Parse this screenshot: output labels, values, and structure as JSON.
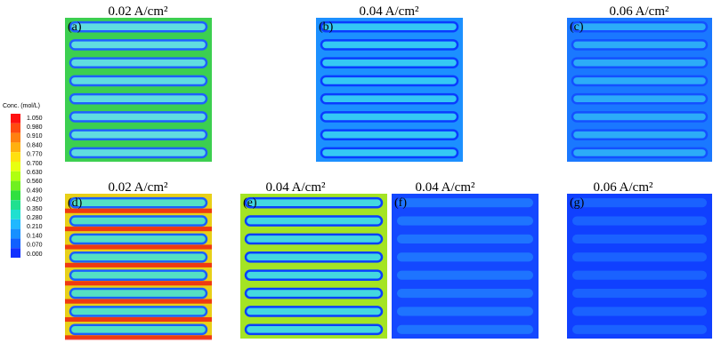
{
  "colorbar": {
    "title": "Conc. (mol/L)",
    "ticks": [
      "1.050",
      "0.980",
      "0.910",
      "0.840",
      "0.770",
      "0.700",
      "0.630",
      "0.560",
      "0.490",
      "0.420",
      "0.350",
      "0.280",
      "0.210",
      "0.140",
      "0.070",
      "0.000"
    ]
  },
  "panels": [
    {
      "label": "(a)",
      "title": "0.02 A/cm²"
    },
    {
      "label": "(b)",
      "title": "0.04 A/cm²"
    },
    {
      "label": "(c)",
      "title": "0.06 A/cm²"
    },
    {
      "label": "(d)",
      "title": "0.02 A/cm²"
    },
    {
      "label": "(e)",
      "title": "0.04 A/cm²"
    },
    {
      "label": "(f)",
      "title": "0.04 A/cm²"
    },
    {
      "label": "(g)",
      "title": "0.06 A/cm²"
    }
  ]
}
